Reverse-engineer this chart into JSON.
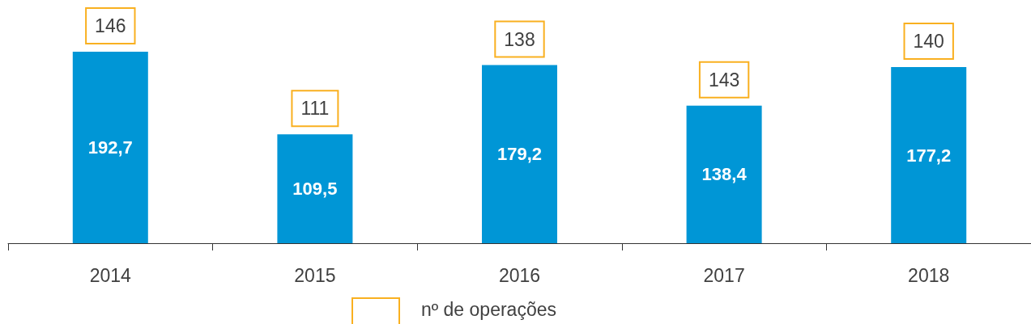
{
  "chart_data": {
    "type": "bar",
    "categories": [
      "2014",
      "2015",
      "2016",
      "2017",
      "2018"
    ],
    "values": [
      192.7,
      109.5,
      179.2,
      138.4,
      177.2
    ],
    "color": "#0096d6",
    "value_labels": [
      "192,7",
      "109,5",
      "179,2",
      "138,4",
      "177,2"
    ],
    "annotations": [
      {
        "text": "146",
        "x": "2014",
        "y": 192.7
      },
      {
        "text": "111",
        "x": "2015",
        "y": 109.5
      },
      {
        "text": "138",
        "x": "2016",
        "y": 179.2
      },
      {
        "text": "143",
        "x": "2017",
        "y": 138.4
      },
      {
        "text": "140",
        "x": "2018",
        "y": 177.2
      },
      "nº de operações"
    ]
  }
}
